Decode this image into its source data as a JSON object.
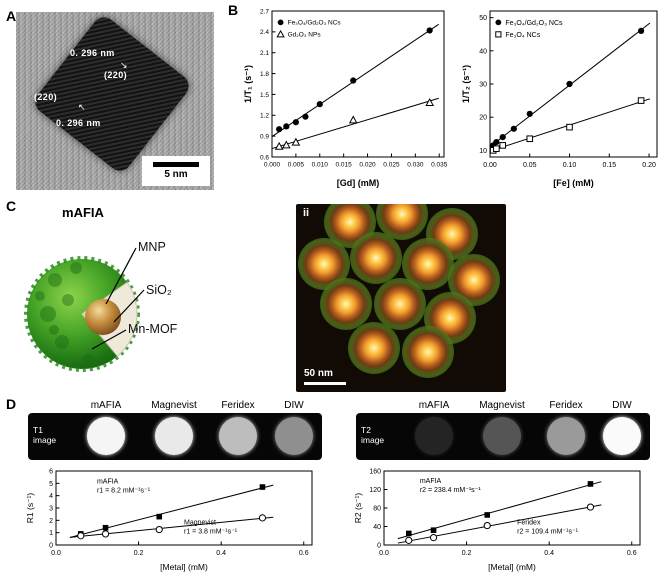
{
  "colors": {
    "mof_green": "#2c8a1e",
    "mnp_gold": "#c89140",
    "background": "#ffffff"
  },
  "panels": {
    "a": {
      "label": "A",
      "tem": {
        "d_spacing_top": "0. 296 nm",
        "plane_top": "(220)",
        "plane_left": "(220)",
        "d_spacing_bottom": "0. 296 nm",
        "scale_bar": "5 nm"
      },
      "icons": {
        "lattice_arrow_down": "↘",
        "lattice_arrow_up": "↖"
      }
    },
    "b": {
      "label": "B"
    },
    "c": {
      "label": "C",
      "title": "mAFIA",
      "labels": {
        "core": "MNP",
        "shell": "SiO₂",
        "surface": "Mn-MOF"
      },
      "micrograph": {
        "tag": "ii",
        "scale_bar": "50 nm",
        "particles": [
          [
            54,
            18
          ],
          [
            106,
            10
          ],
          [
            156,
            30
          ],
          [
            28,
            60
          ],
          [
            80,
            54
          ],
          [
            132,
            60
          ],
          [
            178,
            76
          ],
          [
            50,
            100
          ],
          [
            104,
            100
          ],
          [
            154,
            114
          ],
          [
            78,
            144
          ],
          [
            132,
            148
          ]
        ]
      }
    },
    "d": {
      "label": "D",
      "t1_strip": {
        "row_label": "T1 image",
        "columns": [
          "mAFIA",
          "Magnevist",
          "Feridex",
          "DIW"
        ],
        "well_shades": [
          "#f5f5f5",
          "#e9e9e9",
          "#bdbdbd",
          "#8f8f8f"
        ]
      },
      "t2_strip": {
        "row_label": "T2 image",
        "columns": [
          "mAFIA",
          "Magnevist",
          "Feridex",
          "DIW"
        ],
        "well_shades": [
          "#242424",
          "#555555",
          "#9a9a9a",
          "#fafafa"
        ]
      }
    }
  },
  "chart_data": [
    {
      "id": "b1",
      "type": "scatter",
      "title": "",
      "xlabel": "[Gd] (mM)",
      "ylabel": "1/T₁ (s⁻¹)",
      "xlim": [
        0,
        0.036
      ],
      "ylim": [
        0.6,
        2.7
      ],
      "xticks": [
        0,
        0.005,
        0.01,
        0.015,
        0.02,
        0.025,
        0.03,
        0.035
      ],
      "xtick_labels": [
        "0.000",
        "0.005",
        "0.010",
        "0.015",
        "0.020",
        "0.025",
        "0.030",
        "0.035"
      ],
      "yticks": [
        0.6,
        0.9,
        1.2,
        1.5,
        1.8,
        2.1,
        2.4,
        2.7
      ],
      "ytick_labels": [
        "0.6",
        "0.9",
        "1.2",
        "1.5",
        "1.8",
        "2.1",
        "2.4",
        "2.7"
      ],
      "legend": {
        "fx": 0.05,
        "fy": 0.03
      },
      "series": [
        {
          "name": "Fe₃O₄/Gd₂O₃ NCs",
          "marker": "circle-filled",
          "fit_line": true,
          "x": [
            0.0015,
            0.003,
            0.005,
            0.007,
            0.01,
            0.017,
            0.033
          ],
          "y": [
            1.0,
            1.04,
            1.1,
            1.18,
            1.36,
            1.7,
            2.42
          ]
        },
        {
          "name": "Gd₂O₃ NPs",
          "marker": "triangle-open",
          "fit_line": true,
          "x": [
            0.0015,
            0.003,
            0.005,
            0.017,
            0.033
          ],
          "y": [
            0.75,
            0.77,
            0.81,
            1.13,
            1.38
          ]
        }
      ]
    },
    {
      "id": "b2",
      "type": "scatter",
      "title": "",
      "xlabel": "[Fe] (mM)",
      "ylabel": "1/T₂ (s⁻¹)",
      "xlim": [
        0,
        0.21
      ],
      "ylim": [
        8,
        52
      ],
      "xticks": [
        0,
        0.05,
        0.1,
        0.15,
        0.2
      ],
      "xtick_labels": [
        "0.00",
        "0.05",
        "0.10",
        "0.15",
        "0.20"
      ],
      "yticks": [
        10,
        20,
        30,
        40,
        50
      ],
      "ytick_labels": [
        "10",
        "20",
        "30",
        "40",
        "50"
      ],
      "legend": {
        "fx": 0.05,
        "fy": 0.03
      },
      "series": [
        {
          "name": "Fe₃O₄/Gd₂O₃ NCs",
          "marker": "circle-filled",
          "fit_line": true,
          "x": [
            0.004,
            0.008,
            0.016,
            0.03,
            0.05,
            0.1,
            0.19
          ],
          "y": [
            11.5,
            12.5,
            14,
            16.5,
            21,
            30,
            46
          ]
        },
        {
          "name": "Fe₃O₄ NCs",
          "marker": "square-open",
          "fit_line": true,
          "x": [
            0.004,
            0.008,
            0.016,
            0.05,
            0.1,
            0.19
          ],
          "y": [
            10,
            10.5,
            11.5,
            13.5,
            17,
            25
          ]
        }
      ]
    },
    {
      "id": "d1",
      "type": "scatter",
      "title": "",
      "xlabel": "[Metal] (mM)",
      "ylabel": "R1 (s⁻¹)",
      "xlim": [
        0,
        0.62
      ],
      "ylim": [
        0,
        6
      ],
      "xticks": [
        0,
        0.2,
        0.4,
        0.6
      ],
      "xtick_labels": [
        "0.0",
        "0.2",
        "0.4",
        "0.6"
      ],
      "yticks": [
        0,
        1,
        2,
        3,
        4,
        5,
        6
      ],
      "ytick_labels": [
        "0",
        "1",
        "2",
        "3",
        "4",
        "5",
        "6"
      ],
      "annotations": [
        {
          "lines": [
            "mAFIA",
            "r1 = 8.2 mM⁻¹s⁻¹"
          ],
          "fx": 0.16,
          "fy": 0.05
        },
        {
          "lines": [
            "Magnevist",
            "r1 = 3.8 mM⁻¹s⁻¹"
          ],
          "fx": 0.5,
          "fy": 0.6
        }
      ],
      "series": [
        {
          "name": "mAFIA",
          "marker": "square-filled",
          "fit_line": true,
          "x": [
            0.06,
            0.12,
            0.25,
            0.5
          ],
          "y": [
            0.9,
            1.4,
            2.3,
            4.7
          ]
        },
        {
          "name": "Magnevist",
          "marker": "circle-open",
          "fit_line": true,
          "x": [
            0.06,
            0.12,
            0.25,
            0.5
          ],
          "y": [
            0.75,
            0.9,
            1.25,
            2.2
          ]
        }
      ]
    },
    {
      "id": "d2",
      "type": "scatter",
      "title": "",
      "xlabel": "[Metal] (mM)",
      "ylabel": "R2 (s⁻¹)",
      "xlim": [
        0,
        0.62
      ],
      "ylim": [
        0,
        160
      ],
      "xticks": [
        0,
        0.2,
        0.4,
        0.6
      ],
      "xtick_labels": [
        "0.0",
        "0.2",
        "0.4",
        "0.6"
      ],
      "yticks": [
        0,
        40,
        80,
        120,
        160
      ],
      "ytick_labels": [
        "0",
        "40",
        "80",
        "120",
        "160"
      ],
      "annotations": [
        {
          "lines": [
            "mAFIA",
            "r2 = 238.4 mM⁻¹s⁻¹"
          ],
          "fx": 0.14,
          "fy": 0.04
        },
        {
          "lines": [
            "Feridex",
            "r2 = 109.4 mM⁻¹s⁻¹"
          ],
          "fx": 0.52,
          "fy": 0.6
        }
      ],
      "series": [
        {
          "name": "mAFIA",
          "marker": "square-filled",
          "fit_line": true,
          "x": [
            0.06,
            0.12,
            0.25,
            0.5
          ],
          "y": [
            25,
            32,
            65,
            132
          ]
        },
        {
          "name": "Feridex",
          "marker": "circle-open",
          "fit_line": true,
          "x": [
            0.06,
            0.12,
            0.25,
            0.5
          ],
          "y": [
            10,
            16,
            42,
            82
          ]
        }
      ]
    }
  ]
}
